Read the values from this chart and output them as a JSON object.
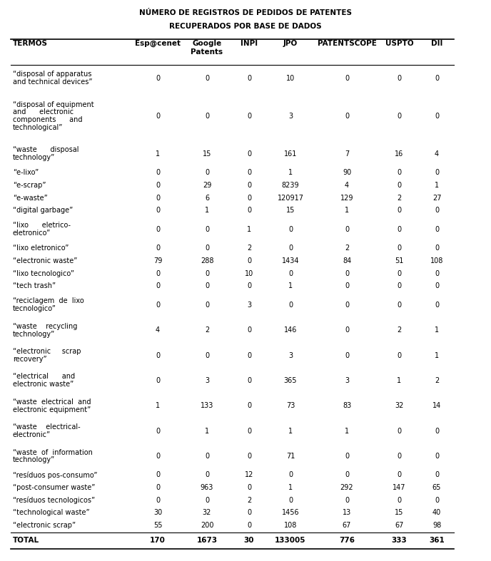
{
  "title_line1": "NÚMERO DE REGISTROS DE PEDIDOS DE PATENTES",
  "title_line2": "RECUPERADOS POR BASE DE DADOS",
  "col_headers": [
    "TERMOS",
    "Esp@cenet",
    "Google\nPatents",
    "INPI",
    "JPO",
    "PATENTSCOPE",
    "USPTO",
    "DII"
  ],
  "rows": [
    [
      "“disposal of apparatus\nand technical devices”",
      "0",
      "0",
      "0",
      "10",
      "0",
      "0",
      "0"
    ],
    [
      "“disposal of equipment\nand      electronic\ncomponents      and\ntechnological”",
      "0",
      "0",
      "0",
      "3",
      "0",
      "0",
      "0"
    ],
    [
      "“waste      disposal\ntechnology”",
      "1",
      "15",
      "0",
      "161",
      "7",
      "16",
      "4"
    ],
    [
      "“e-lixo”",
      "0",
      "0",
      "0",
      "1",
      "90",
      "0",
      "0"
    ],
    [
      "“e-scrap”",
      "0",
      "29",
      "0",
      "8239",
      "4",
      "0",
      "1"
    ],
    [
      "“e-waste”",
      "0",
      "6",
      "0",
      "120917",
      "129",
      "2",
      "27"
    ],
    [
      "“digital garbage”",
      "0",
      "1",
      "0",
      "15",
      "1",
      "0",
      "0"
    ],
    [
      "“lixo      eletrico-\neletronico”",
      "0",
      "0",
      "1",
      "0",
      "0",
      "0",
      "0"
    ],
    [
      "“lixo eletronico”",
      "0",
      "0",
      "2",
      "0",
      "2",
      "0",
      "0"
    ],
    [
      "“electronic waste”",
      "79",
      "288",
      "0",
      "1434",
      "84",
      "51",
      "108"
    ],
    [
      "“lixo tecnologico”",
      "0",
      "0",
      "10",
      "0",
      "0",
      "0",
      "0"
    ],
    [
      "“tech trash”",
      "0",
      "0",
      "0",
      "1",
      "0",
      "0",
      "0"
    ],
    [
      "“reciclagem  de  lixo\ntecnologico”",
      "0",
      "0",
      "3",
      "0",
      "0",
      "0",
      "0"
    ],
    [
      "“waste    recycling\ntechnology”",
      "4",
      "2",
      "0",
      "146",
      "0",
      "2",
      "1"
    ],
    [
      "“electronic     scrap\nrecovery”",
      "0",
      "0",
      "0",
      "3",
      "0",
      "0",
      "1"
    ],
    [
      "“electrical      and\nelectronic waste”",
      "0",
      "3",
      "0",
      "365",
      "3",
      "1",
      "2"
    ],
    [
      "“waste  electrical  and\nelectronic equipment”",
      "1",
      "133",
      "0",
      "73",
      "83",
      "32",
      "14"
    ],
    [
      "“waste    electrical-\nelectronic”",
      "0",
      "1",
      "0",
      "1",
      "1",
      "0",
      "0"
    ],
    [
      "“waste  of  information\ntechnology”",
      "0",
      "0",
      "0",
      "71",
      "0",
      "0",
      "0"
    ],
    [
      "“resíduos pos-consumo”",
      "0",
      "0",
      "12",
      "0",
      "0",
      "0",
      "0"
    ],
    [
      "“post-consumer waste”",
      "0",
      "963",
      "0",
      "1",
      "292",
      "147",
      "65"
    ],
    [
      "“resíduos tecnologicos”",
      "0",
      "0",
      "2",
      "0",
      "0",
      "0",
      "0"
    ],
    [
      "“technological waste”",
      "30",
      "32",
      "0",
      "1456",
      "13",
      "15",
      "40"
    ],
    [
      "“electronic scrap”",
      "55",
      "200",
      "0",
      "108",
      "67",
      "67",
      "98"
    ]
  ],
  "total_row": [
    "TOTAL",
    "170",
    "1673",
    "30",
    "133005",
    "776",
    "333",
    "361"
  ],
  "fig_width": 6.88,
  "fig_height": 7.87,
  "title_fontsize": 7.5,
  "header_fontsize": 7.5,
  "cell_fontsize": 7.0
}
